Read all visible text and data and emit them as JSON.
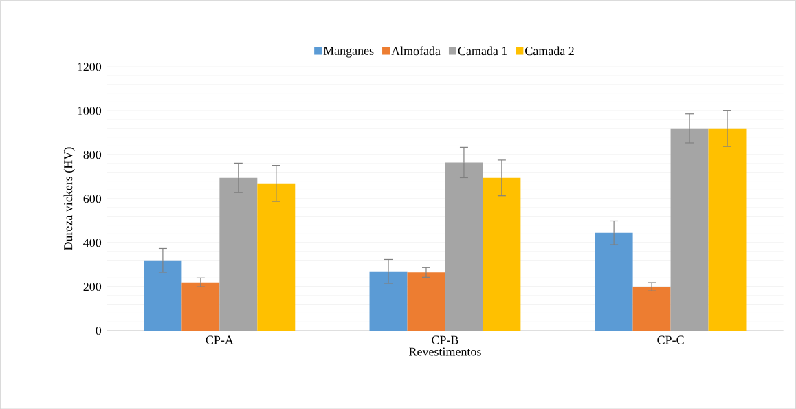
{
  "chart_data": {
    "type": "bar",
    "xlabel": "Revestimentos",
    "ylabel": "Dureza vickers (HV)",
    "categories": [
      "CP-A",
      "CP-B",
      "CP-C"
    ],
    "series": [
      {
        "name": "Manganes",
        "color": "#5b9bd5",
        "values": [
          320,
          270,
          445
        ],
        "errors": [
          54,
          54,
          54
        ]
      },
      {
        "name": "Almofada",
        "color": "#ed7d31",
        "values": [
          220,
          265,
          200
        ],
        "errors": [
          20,
          22,
          19
        ]
      },
      {
        "name": "Camada 1",
        "color": "#a5a5a5",
        "values": [
          695,
          765,
          920
        ],
        "errors": [
          67,
          69,
          66
        ]
      },
      {
        "name": "Camada 2",
        "color": "#ffc000",
        "values": [
          670,
          695,
          920
        ],
        "errors": [
          82,
          81,
          82
        ]
      }
    ],
    "ylim": [
      0,
      1200
    ],
    "yticks": [
      0,
      200,
      400,
      600,
      800,
      1000,
      1200
    ],
    "grid": "y",
    "legend": "top"
  }
}
